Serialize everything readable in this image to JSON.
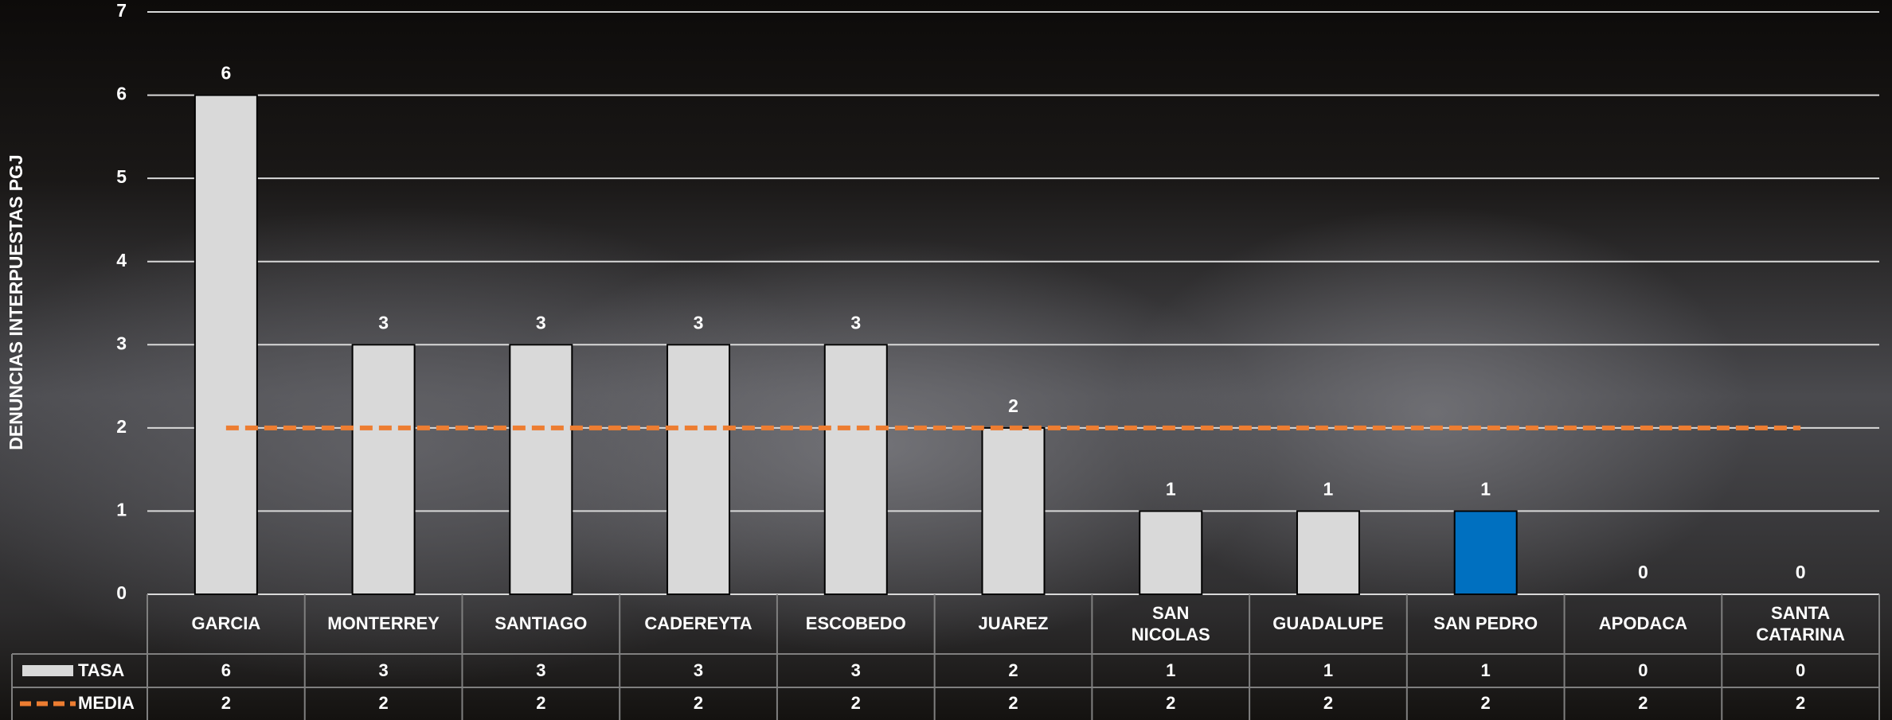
{
  "chart_data": {
    "type": "bar",
    "y_label": "DENUNCIAS INTERPUESTAS PGJ",
    "categories": [
      "GARCIA",
      "MONTERREY",
      "SANTIAGO",
      "CADEREYTA",
      "ESCOBEDO",
      "JUAREZ",
      "SAN NICOLAS",
      "GUADALUPE",
      "SAN PEDRO",
      "APODACA",
      "SANTA CATARINA"
    ],
    "series": [
      {
        "name": "TASA",
        "type": "bar",
        "color": "#d9d9d9",
        "colors": [
          "#d9d9d9",
          "#d9d9d9",
          "#d9d9d9",
          "#d9d9d9",
          "#d9d9d9",
          "#d9d9d9",
          "#d9d9d9",
          "#d9d9d9",
          "#0070c0",
          "#d9d9d9",
          "#d9d9d9"
        ],
        "values": [
          6,
          3,
          3,
          3,
          3,
          2,
          1,
          1,
          1,
          0,
          0
        ]
      },
      {
        "name": "MEDIA",
        "type": "line",
        "color": "#ed7d31",
        "dashed": true,
        "values": [
          2,
          2,
          2,
          2,
          2,
          2,
          2,
          2,
          2,
          2,
          2
        ]
      }
    ],
    "ylim": [
      0,
      7
    ],
    "yticks": [
      0,
      1,
      2,
      3,
      4,
      5,
      6,
      7
    ],
    "grid": true,
    "data_labels": true,
    "data_table": true
  }
}
